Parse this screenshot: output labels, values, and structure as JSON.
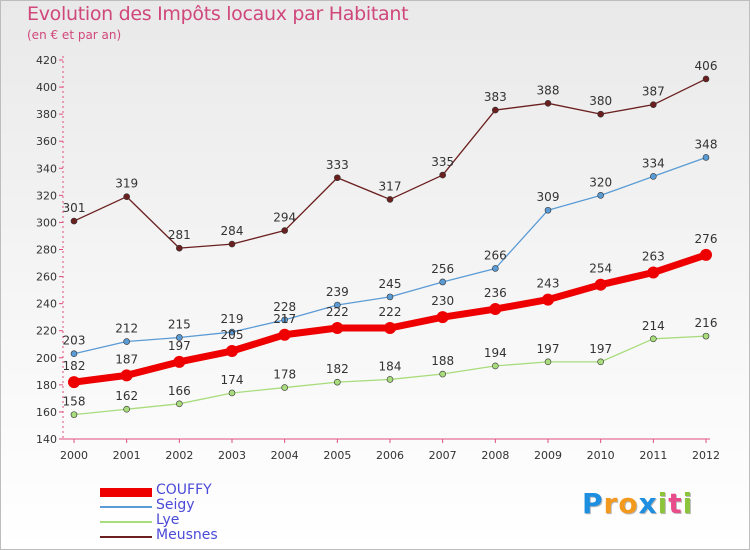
{
  "title": "Evolution des Impôts locaux par Habitant",
  "subtitle": "(en € et par an)",
  "logo": {
    "letters": [
      "P",
      "r",
      "o",
      "x",
      "i",
      "t",
      "i"
    ],
    "colors": [
      "#1e8fe0",
      "#f39a1e",
      "#f39a1e",
      "#1e8fe0",
      "#8cc43b",
      "#e84c8b",
      "#8cc43b"
    ]
  },
  "chart_data": {
    "type": "line",
    "title": "Evolution des Impôts locaux par Habitant",
    "subtitle": "(en € et par an)",
    "categories": [
      "2000",
      "2001",
      "2002",
      "2003",
      "2004",
      "2005",
      "2006",
      "2007",
      "2008",
      "2009",
      "2010",
      "2011",
      "2012"
    ],
    "ylim": [
      140,
      420
    ],
    "yticks": [
      "140",
      "160",
      "180",
      "200",
      "220",
      "240",
      "260",
      "280",
      "300",
      "320",
      "340",
      "360",
      "380",
      "400",
      "420"
    ],
    "grid": false,
    "legend_position": "bottom-left",
    "series": [
      {
        "name": "COUFFY",
        "color": "#ee0000",
        "values": [
          182,
          187,
          197,
          205,
          217,
          222,
          222,
          230,
          236,
          243,
          254,
          263,
          276
        ]
      },
      {
        "name": "Seigy",
        "color": "#5b9bd5",
        "values": [
          203,
          212,
          215,
          219,
          228,
          239,
          245,
          256,
          266,
          309,
          320,
          334,
          348
        ]
      },
      {
        "name": "Lye",
        "color": "#a8dc7c",
        "values": [
          158,
          162,
          166,
          174,
          178,
          182,
          184,
          188,
          194,
          197,
          197,
          214,
          216
        ]
      },
      {
        "name": "Meusnes",
        "color": "#6b1f1f",
        "values": [
          301,
          319,
          281,
          284,
          294,
          333,
          317,
          335,
          383,
          388,
          380,
          387,
          406
        ]
      }
    ]
  }
}
